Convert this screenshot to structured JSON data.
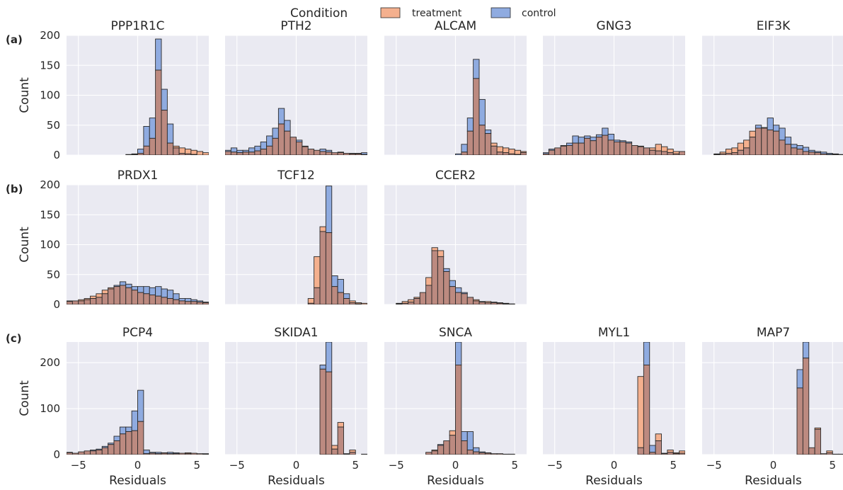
{
  "legend": {
    "title": "Condition",
    "entries": [
      {
        "label": "treatment",
        "color": "#f4b08e"
      },
      {
        "label": "control",
        "color": "#8fabe0"
      }
    ]
  },
  "row_labels": [
    "(a)",
    "(b)",
    "(c)"
  ],
  "axis_labels": {
    "x": "Residuals",
    "y": "Count"
  },
  "colors": {
    "treatment": "#f4b08e",
    "control": "#8fabe0",
    "overlap": "#bc8a80",
    "panel_bg": "#eaeaf2",
    "grid": "#ffffff",
    "edge": "#2a2a2a"
  },
  "chart_data": {
    "type": "bar",
    "subtype": "overlaid-histogram-grid",
    "xlabel": "Residuals",
    "ylabel": "Count",
    "xlim": [
      -6,
      6
    ],
    "xticks": [
      -5,
      0,
      5
    ],
    "bin_edges_start": -6,
    "bin_width": 0.5,
    "rows": [
      {
        "label": "(a)",
        "ylim": [
          0,
          200
        ],
        "yticks": [
          0,
          50,
          100,
          150,
          200
        ],
        "panels": [
          {
            "title": "PPP1R1C",
            "treatment": [
              0,
              0,
              0,
              0,
              0,
              0,
              0,
              0,
              0,
              0,
              0,
              1,
              3,
              15,
              28,
              142,
              75,
              20,
              15,
              12,
              10,
              8,
              6,
              4
            ],
            "control": [
              0,
              0,
              0,
              0,
              0,
              0,
              0,
              0,
              0,
              0,
              1,
              2,
              10,
              48,
              62,
              194,
              110,
              52,
              12,
              3,
              2,
              1,
              0,
              0
            ]
          },
          {
            "title": "PTH2",
            "treatment": [
              6,
              5,
              4,
              5,
              5,
              7,
              10,
              15,
              28,
              52,
              40,
              30,
              22,
              14,
              10,
              8,
              6,
              5,
              4,
              4,
              3,
              2,
              2,
              1
            ],
            "control": [
              8,
              12,
              8,
              8,
              12,
              15,
              22,
              32,
              45,
              78,
              58,
              30,
              25,
              15,
              10,
              8,
              10,
              8,
              4,
              5,
              3,
              3,
              3,
              4
            ]
          },
          {
            "title": "ALCAM",
            "treatment": [
              0,
              0,
              0,
              0,
              0,
              0,
              0,
              0,
              0,
              0,
              0,
              0,
              0,
              5,
              40,
              128,
              50,
              36,
              20,
              14,
              12,
              10,
              8,
              6
            ],
            "control": [
              0,
              0,
              0,
              0,
              0,
              0,
              0,
              0,
              0,
              0,
              0,
              0,
              2,
              18,
              62,
              160,
              93,
              42,
              15,
              5,
              4,
              2,
              1,
              4
            ]
          },
          {
            "title": "GNG3",
            "treatment": [
              2,
              8,
              12,
              15,
              16,
              20,
              20,
              28,
              24,
              30,
              33,
              25,
              22,
              22,
              20,
              16,
              15,
              12,
              12,
              18,
              14,
              10,
              6,
              6
            ],
            "control": [
              4,
              10,
              12,
              16,
              20,
              32,
              30,
              32,
              30,
              34,
              45,
              35,
              25,
              24,
              22,
              16,
              14,
              12,
              8,
              7,
              6,
              4,
              2,
              6
            ]
          },
          {
            "title": "EIF3K",
            "treatment": [
              0,
              0,
              2,
              5,
              10,
              12,
              20,
              25,
              40,
              45,
              45,
              42,
              40,
              25,
              18,
              12,
              10,
              6,
              5,
              4,
              2,
              1,
              1,
              1
            ],
            "control": [
              0,
              0,
              1,
              2,
              3,
              4,
              8,
              12,
              30,
              50,
              46,
              62,
              50,
              45,
              30,
              18,
              16,
              13,
              8,
              6,
              5,
              3,
              2,
              1
            ]
          }
        ]
      },
      {
        "label": "(b)",
        "ylim": [
          0,
          200
        ],
        "yticks": [
          0,
          50,
          100,
          150,
          200
        ],
        "panels": [
          {
            "title": "PRDX1",
            "treatment": [
              6,
              6,
              8,
              10,
              14,
              18,
              24,
              28,
              30,
              32,
              28,
              24,
              20,
              18,
              16,
              14,
              12,
              10,
              8,
              6,
              5,
              5,
              4,
              3
            ],
            "control": [
              5,
              6,
              6,
              8,
              10,
              12,
              18,
              26,
              32,
              38,
              34,
              30,
              30,
              30,
              28,
              30,
              26,
              24,
              18,
              10,
              10,
              8,
              6,
              4
            ]
          },
          {
            "title": "TCF12",
            "treatment": [
              0,
              0,
              0,
              0,
              0,
              0,
              0,
              0,
              0,
              0,
              0,
              0,
              0,
              0,
              10,
              80,
              130,
              120,
              30,
              20,
              10,
              6,
              3,
              2
            ],
            "control": [
              0,
              0,
              0,
              0,
              0,
              0,
              0,
              0,
              0,
              0,
              0,
              0,
              0,
              0,
              2,
              28,
              122,
              198,
              48,
              42,
              18,
              3,
              1,
              0
            ]
          },
          {
            "title": "CCER2",
            "treatment": [
              0,
              0,
              2,
              5,
              8,
              12,
              20,
              45,
              95,
              90,
              55,
              30,
              20,
              18,
              12,
              8,
              5,
              5,
              4,
              3,
              2,
              1,
              0,
              0
            ],
            "control": [
              0,
              0,
              1,
              2,
              4,
              10,
              20,
              32,
              90,
              80,
              60,
              40,
              28,
              20,
              12,
              6,
              4,
              3,
              3,
              2,
              1,
              1,
              0,
              0
            ]
          }
        ]
      },
      {
        "label": "(c)",
        "ylim": [
          0,
          245
        ],
        "yticks": [
          0,
          100,
          200
        ],
        "panels": [
          {
            "title": "PCP4",
            "treatment": [
              4,
              3,
              6,
              8,
              8,
              10,
              15,
              22,
              30,
              45,
              50,
              52,
              72,
              2,
              3,
              2,
              3,
              2,
              2,
              3,
              4,
              3,
              2,
              1
            ],
            "control": [
              5,
              3,
              6,
              8,
              10,
              12,
              18,
              25,
              40,
              60,
              60,
              95,
              140,
              10,
              5,
              5,
              4,
              5,
              4,
              3,
              2,
              3,
              2,
              2
            ]
          },
          {
            "title": "SKIDA1",
            "treatment": [
              0,
              0,
              0,
              0,
              0,
              0,
              0,
              0,
              0,
              0,
              0,
              0,
              0,
              0,
              0,
              0,
              186,
              180,
              20,
              70,
              2,
              10,
              0,
              1
            ],
            "control": [
              0,
              0,
              0,
              0,
              0,
              0,
              0,
              0,
              0,
              0,
              0,
              0,
              0,
              0,
              0,
              0,
              195,
              250,
              12,
              60,
              1,
              5,
              0,
              0
            ]
          },
          {
            "title": "SNCA",
            "treatment": [
              0,
              0,
              0,
              0,
              0,
              0,
              0,
              5,
              10,
              20,
              30,
              52,
              195,
              30,
              10,
              6,
              4,
              3,
              2,
              2,
              1,
              1,
              0,
              0
            ],
            "control": [
              0,
              0,
              0,
              0,
              0,
              0,
              0,
              5,
              8,
              22,
              30,
              42,
              250,
              50,
              50,
              15,
              6,
              4,
              2,
              2,
              1,
              1,
              0,
              0
            ]
          },
          {
            "title": "MYL1",
            "treatment": [
              0,
              0,
              0,
              0,
              0,
              0,
              0,
              0,
              0,
              0,
              0,
              0,
              0,
              0,
              0,
              0,
              170,
              195,
              5,
              45,
              3,
              10,
              4,
              8
            ],
            "control": [
              0,
              0,
              0,
              0,
              0,
              0,
              0,
              0,
              0,
              0,
              0,
              0,
              0,
              0,
              0,
              0,
              15,
              250,
              20,
              30,
              2,
              5,
              2,
              3
            ]
          },
          {
            "title": "MAP7",
            "treatment": [
              0,
              0,
              0,
              0,
              0,
              0,
              0,
              0,
              0,
              0,
              0,
              0,
              0,
              0,
              0,
              0,
              145,
              210,
              15,
              58,
              2,
              8,
              1,
              1
            ],
            "control": [
              0,
              0,
              0,
              0,
              0,
              0,
              0,
              0,
              0,
              0,
              0,
              0,
              0,
              0,
              0,
              0,
              185,
              250,
              15,
              55,
              2,
              4,
              1,
              1
            ]
          }
        ]
      }
    ]
  }
}
